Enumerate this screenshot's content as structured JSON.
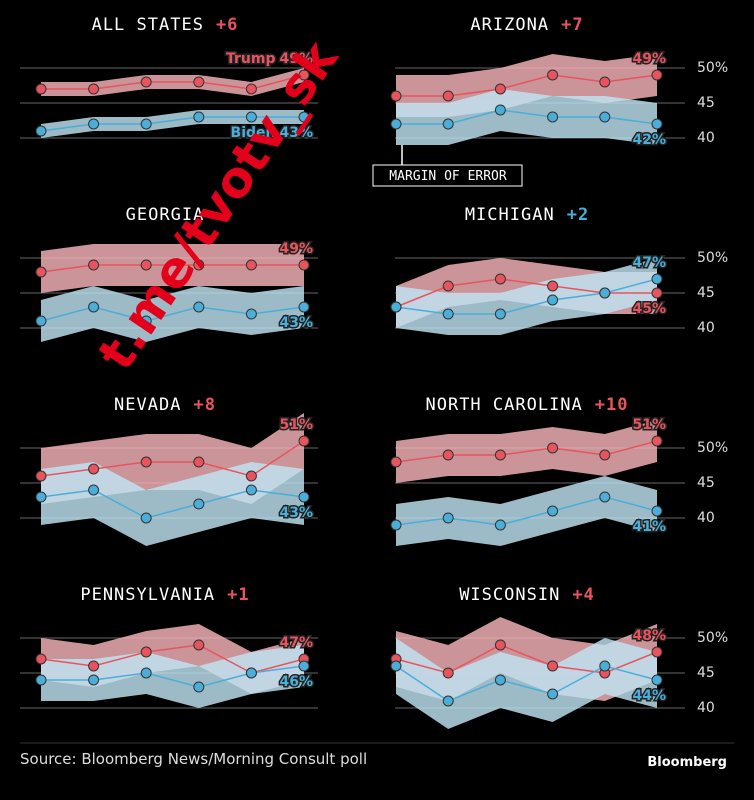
{
  "chart_data": [
    {
      "type": "line",
      "title": "ALL STATES",
      "lead": "+6",
      "lead_color": "#e8545e",
      "margin_of_error": 1,
      "ylim": [
        37,
        53
      ],
      "yticks": [
        40,
        45,
        50
      ],
      "tick_labels": false,
      "series": [
        {
          "name": "Trump",
          "color": "#e8545e",
          "band_color": "#f6b5bb",
          "values": [
            47,
            47,
            48,
            48,
            47,
            49
          ],
          "end_label": "49%"
        },
        {
          "name": "Biden",
          "color": "#4aaed9",
          "band_color": "#bfe3f3",
          "values": [
            41,
            42,
            42,
            43,
            43,
            43
          ],
          "end_label": "43%"
        }
      ]
    },
    {
      "type": "line",
      "title": "ARIZONA",
      "lead": "+7",
      "lead_color": "#e8545e",
      "margin_of_error": 3,
      "ylim": [
        37,
        53
      ],
      "yticks": [
        40,
        45,
        {
          "value": 50,
          "label": "50%"
        }
      ],
      "tick_labels": true,
      "annotation": "MARGIN OF ERROR",
      "series": [
        {
          "color": "#e8545e",
          "band_color": "#f6b5bb",
          "values": [
            46,
            46,
            47,
            49,
            48,
            49
          ],
          "end_label": "49%"
        },
        {
          "color": "#4aaed9",
          "band_color": "#bfe3f3",
          "values": [
            42,
            42,
            44,
            43,
            43,
            42
          ],
          "end_label": "42%"
        }
      ]
    },
    {
      "type": "line",
      "title": "GEORGIA",
      "margin_of_error": 3,
      "ylim": [
        37,
        53
      ],
      "yticks": [
        40,
        45,
        50
      ],
      "tick_labels": false,
      "series": [
        {
          "color": "#e8545e",
          "band_color": "#f6b5bb",
          "values": [
            48,
            49,
            49,
            49,
            49,
            49
          ],
          "end_label": "49%"
        },
        {
          "color": "#4aaed9",
          "band_color": "#bfe3f3",
          "values": [
            41,
            43,
            41,
            43,
            42,
            43
          ],
          "end_label": "43%"
        }
      ]
    },
    {
      "type": "line",
      "title": "MICHIGAN",
      "lead": "+2",
      "lead_color": "#4aaed9",
      "margin_of_error": 3,
      "ylim": [
        37,
        53
      ],
      "yticks": [
        40,
        45,
        {
          "value": 50,
          "label": "50%"
        }
      ],
      "tick_labels": true,
      "series": [
        {
          "color": "#e8545e",
          "band_color": "#f6b5bb",
          "values": [
            43,
            46,
            47,
            46,
            45,
            45
          ],
          "end_label": "45%"
        },
        {
          "color": "#4aaed9",
          "band_color": "#bfe3f3",
          "values": [
            43,
            42,
            42,
            44,
            45,
            47
          ],
          "end_label": "47%"
        }
      ]
    },
    {
      "type": "line",
      "title": "NEVADA",
      "lead": "+8",
      "lead_color": "#e8545e",
      "margin_of_error": 4,
      "ylim": [
        37,
        53
      ],
      "yticks": [
        40,
        45,
        50
      ],
      "tick_labels": false,
      "series": [
        {
          "color": "#e8545e",
          "band_color": "#f6b5bb",
          "values": [
            46,
            47,
            48,
            48,
            46,
            51
          ],
          "end_label": "51%"
        },
        {
          "color": "#4aaed9",
          "band_color": "#bfe3f3",
          "values": [
            43,
            44,
            40,
            42,
            44,
            43
          ],
          "end_label": "43%"
        }
      ]
    },
    {
      "type": "line",
      "title": "NORTH CAROLINA",
      "lead": "+10",
      "lead_color": "#e8545e",
      "margin_of_error": 3,
      "ylim": [
        37,
        53
      ],
      "yticks": [
        40,
        45,
        {
          "value": 50,
          "label": "50%"
        }
      ],
      "tick_labels": true,
      "series": [
        {
          "color": "#e8545e",
          "band_color": "#f6b5bb",
          "values": [
            48,
            49,
            49,
            50,
            49,
            51
          ],
          "end_label": "51%"
        },
        {
          "color": "#4aaed9",
          "band_color": "#bfe3f3",
          "values": [
            39,
            40,
            39,
            41,
            43,
            41
          ],
          "end_label": "41%"
        }
      ]
    },
    {
      "type": "line",
      "title": "PENNSYLVANIA",
      "lead": "+1",
      "lead_color": "#e8545e",
      "margin_of_error": 3,
      "ylim": [
        37,
        53
      ],
      "yticks": [
        40,
        45,
        50
      ],
      "tick_labels": false,
      "series": [
        {
          "color": "#e8545e",
          "band_color": "#f6b5bb",
          "values": [
            47,
            46,
            48,
            49,
            45,
            47
          ],
          "end_label": "47%"
        },
        {
          "color": "#4aaed9",
          "band_color": "#bfe3f3",
          "values": [
            44,
            44,
            45,
            43,
            45,
            46
          ],
          "end_label": "46%"
        }
      ]
    },
    {
      "type": "line",
      "title": "WISCONSIN",
      "lead": "+4",
      "lead_color": "#e8545e",
      "margin_of_error": 4,
      "ylim": [
        37,
        53
      ],
      "yticks": [
        40,
        45,
        {
          "value": 50,
          "label": "50%"
        }
      ],
      "tick_labels": true,
      "series": [
        {
          "color": "#e8545e",
          "band_color": "#f6b5bb",
          "values": [
            47,
            45,
            49,
            46,
            45,
            48
          ],
          "end_label": "48%"
        },
        {
          "color": "#4aaed9",
          "band_color": "#bfe3f3",
          "values": [
            46,
            41,
            44,
            42,
            46,
            44
          ],
          "end_label": "44%"
        }
      ]
    }
  ],
  "source": "Source: Bloomberg News/Morning Consult poll",
  "brand": "Bloomberg",
  "watermark": "t.me/tvotv_sk"
}
